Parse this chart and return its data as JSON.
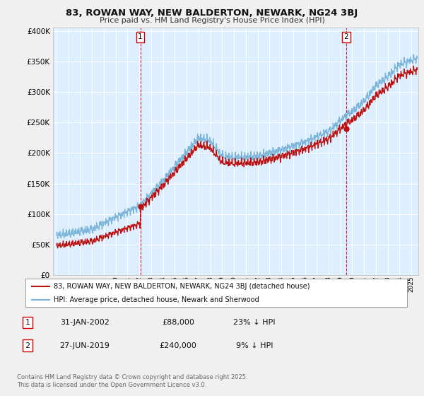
{
  "title": "83, ROWAN WAY, NEW BALDERTON, NEWARK, NG24 3BJ",
  "subtitle": "Price paid vs. HM Land Registry's House Price Index (HPI)",
  "ylim": [
    0,
    400000
  ],
  "yticks": [
    0,
    50000,
    100000,
    150000,
    200000,
    250000,
    300000,
    350000,
    400000
  ],
  "xlim_start": 1994.7,
  "xlim_end": 2025.6,
  "hpi_color": "#7ab4d8",
  "price_color": "#bb1111",
  "marker1_date": 2002.08,
  "marker1_price": 88000,
  "marker2_date": 2019.49,
  "marker2_price": 240000,
  "legend_entries": [
    "83, ROWAN WAY, NEW BALDERTON, NEWARK, NG24 3BJ (detached house)",
    "HPI: Average price, detached house, Newark and Sherwood"
  ],
  "table_rows": [
    {
      "num": "1",
      "date": "31-JAN-2002",
      "price": "£88,000",
      "note": "23% ↓ HPI"
    },
    {
      "num": "2",
      "date": "27-JUN-2019",
      "price": "£240,000",
      "note": "9% ↓ HPI"
    }
  ],
  "footer": "Contains HM Land Registry data © Crown copyright and database right 2025.\nThis data is licensed under the Open Government Licence v3.0.",
  "background_color": "#f0f0f0",
  "plot_bg_color": "#ddeeff",
  "grid_color": "#ffffff",
  "marker_box_color": "#cc0000"
}
